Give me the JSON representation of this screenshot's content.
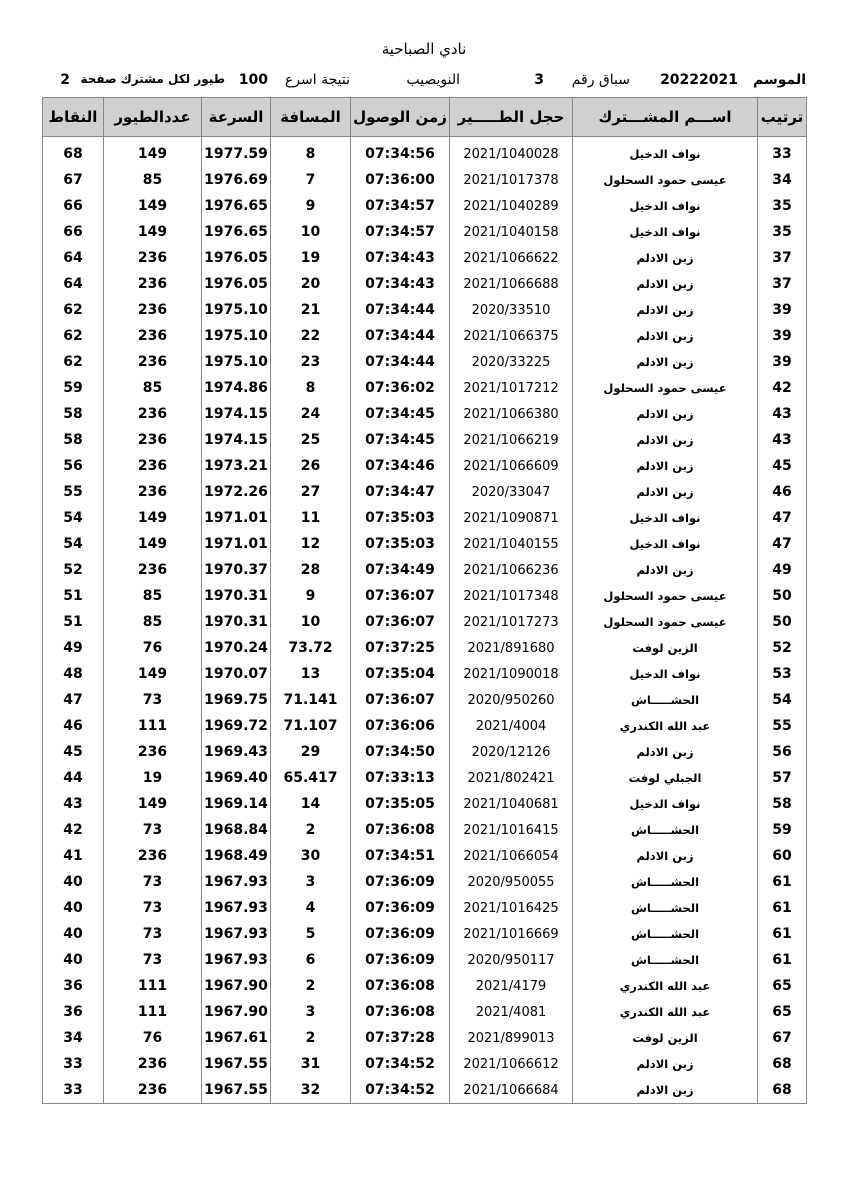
{
  "header": {
    "title": "نادي الصباحية",
    "season_label": "الموسم",
    "season": "20222021",
    "race_label": "سباق رقم",
    "race_number": "3",
    "location": "النويصيب",
    "result_label": "نتيجة اسرع",
    "birds_limit": "100",
    "per_member_label": "طيور لكل مشترك صفحة",
    "page": "2"
  },
  "table": {
    "columns": [
      "ترتيب",
      "اســـم المشـــترك",
      "حجل الطـــــير",
      "زمن الوصول",
      "المسافة",
      "السرعة",
      "عددالطيور",
      "النقاط"
    ],
    "rows": [
      [
        "33",
        "نواف الدخيل",
        "2021/1040028",
        "07:34:56",
        "8",
        "1977.59",
        "149",
        "68"
      ],
      [
        "34",
        "عيسى حمود السحلول",
        "2021/1017378",
        "07:36:00",
        "7",
        "1976.69",
        "85",
        "67"
      ],
      [
        "35",
        "نواف الدخيل",
        "2021/1040289",
        "07:34:57",
        "9",
        "1976.65",
        "149",
        "66"
      ],
      [
        "35",
        "نواف الدخيل",
        "2021/1040158",
        "07:34:57",
        "10",
        "1976.65",
        "149",
        "66"
      ],
      [
        "37",
        "زبن الادلم",
        "2021/1066622",
        "07:34:43",
        "19",
        "1976.05",
        "236",
        "64"
      ],
      [
        "37",
        "زبن الادلم",
        "2021/1066688",
        "07:34:43",
        "20",
        "1976.05",
        "236",
        "64"
      ],
      [
        "39",
        "زبن الادلم",
        "2020/33510",
        "07:34:44",
        "21",
        "1975.10",
        "236",
        "62"
      ],
      [
        "39",
        "زبن الادلم",
        "2021/1066375",
        "07:34:44",
        "22",
        "1975.10",
        "236",
        "62"
      ],
      [
        "39",
        "زبن الادلم",
        "2020/33225",
        "07:34:44",
        "23",
        "1975.10",
        "236",
        "62"
      ],
      [
        "42",
        "عيسى حمود السحلول",
        "2021/1017212",
        "07:36:02",
        "8",
        "1974.86",
        "85",
        "59"
      ],
      [
        "43",
        "زبن الادلم",
        "2021/1066380",
        "07:34:45",
        "24",
        "1974.15",
        "236",
        "58"
      ],
      [
        "43",
        "زبن الادلم",
        "2021/1066219",
        "07:34:45",
        "25",
        "1974.15",
        "236",
        "58"
      ],
      [
        "45",
        "زبن الادلم",
        "2021/1066609",
        "07:34:46",
        "26",
        "1973.21",
        "236",
        "56"
      ],
      [
        "46",
        "زبن الادلم",
        "2020/33047",
        "07:34:47",
        "27",
        "1972.26",
        "236",
        "55"
      ],
      [
        "47",
        "نواف الدخيل",
        "2021/1090871",
        "07:35:03",
        "11",
        "1971.01",
        "149",
        "54"
      ],
      [
        "47",
        "نواف الدخيل",
        "2021/1040155",
        "07:35:03",
        "12",
        "1971.01",
        "149",
        "54"
      ],
      [
        "49",
        "زبن الادلم",
        "2021/1066236",
        "07:34:49",
        "28",
        "1970.37",
        "236",
        "52"
      ],
      [
        "50",
        "عيسى حمود السحلول",
        "2021/1017348",
        "07:36:07",
        "9",
        "1970.31",
        "85",
        "51"
      ],
      [
        "50",
        "عيسى حمود السحلول",
        "2021/1017273",
        "07:36:07",
        "10",
        "1970.31",
        "85",
        "51"
      ],
      [
        "52",
        "الزين لوفت",
        "2021/891680",
        "07:37:25",
        "73.72",
        "1970.24",
        "76",
        "49"
      ],
      [
        "53",
        "نواف الدخيل",
        "2021/1090018",
        "07:35:04",
        "13",
        "1970.07",
        "149",
        "48"
      ],
      [
        "54",
        "الحشـــــاش",
        "2020/950260",
        "07:36:07",
        "71.141",
        "1969.75",
        "73",
        "47"
      ],
      [
        "55",
        "عبد الله الكندري",
        "2021/4004",
        "07:36:06",
        "71.107",
        "1969.72",
        "111",
        "46"
      ],
      [
        "56",
        "زبن الادلم",
        "2020/12126",
        "07:34:50",
        "29",
        "1969.43",
        "236",
        "45"
      ],
      [
        "57",
        "الجبلي لوفت",
        "2021/802421",
        "07:33:13",
        "65.417",
        "1969.40",
        "19",
        "44"
      ],
      [
        "58",
        "نواف الدخيل",
        "2021/1040681",
        "07:35:05",
        "14",
        "1969.14",
        "149",
        "43"
      ],
      [
        "59",
        "الحشـــــاش",
        "2021/1016415",
        "07:36:08",
        "2",
        "1968.84",
        "73",
        "42"
      ],
      [
        "60",
        "زبن الادلم",
        "2021/1066054",
        "07:34:51",
        "30",
        "1968.49",
        "236",
        "41"
      ],
      [
        "61",
        "الحشـــــاش",
        "2020/950055",
        "07:36:09",
        "3",
        "1967.93",
        "73",
        "40"
      ],
      [
        "61",
        "الحشـــــاش",
        "2021/1016425",
        "07:36:09",
        "4",
        "1967.93",
        "73",
        "40"
      ],
      [
        "61",
        "الحشـــــاش",
        "2021/1016669",
        "07:36:09",
        "5",
        "1967.93",
        "73",
        "40"
      ],
      [
        "61",
        "الحشـــــاش",
        "2020/950117",
        "07:36:09",
        "6",
        "1967.93",
        "73",
        "40"
      ],
      [
        "65",
        "عبد الله الكندري",
        "2021/4179",
        "07:36:08",
        "2",
        "1967.90",
        "111",
        "36"
      ],
      [
        "65",
        "عبد الله الكندري",
        "2021/4081",
        "07:36:08",
        "3",
        "1967.90",
        "111",
        "36"
      ],
      [
        "67",
        "الزين لوفت",
        "2021/899013",
        "07:37:28",
        "2",
        "1967.61",
        "76",
        "34"
      ],
      [
        "68",
        "زبن الادلم",
        "2021/1066612",
        "07:34:52",
        "31",
        "1967.55",
        "236",
        "33"
      ],
      [
        "68",
        "زبن الادلم",
        "2021/1066684",
        "07:34:52",
        "32",
        "1967.55",
        "236",
        "33"
      ]
    ]
  }
}
